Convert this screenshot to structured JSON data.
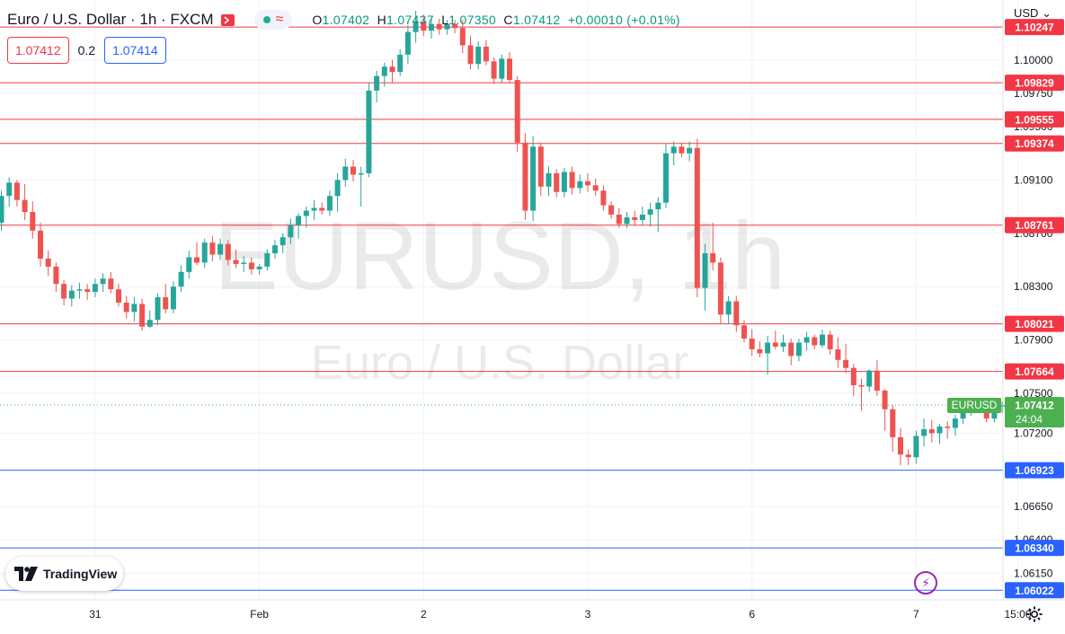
{
  "header": {
    "title": "Euro / U.S. Dollar · 1h · FXCM",
    "open_label": "O",
    "open": "1.07402",
    "high_label": "H",
    "high": "1.07437",
    "low_label": "L",
    "low": "1.07350",
    "close_label": "C",
    "close": "1.07412",
    "change": "+0.00010 (+0.01%)",
    "currency": "USD"
  },
  "quote": {
    "bid": "1.07412",
    "spread": "0.2",
    "ask": "1.07414"
  },
  "watermark": {
    "symbol": "EURUSD, 1h",
    "name": "Euro / U.S. Dollar"
  },
  "branding": {
    "logo_text": "TradingView"
  },
  "colors": {
    "up": "#26a69a",
    "down": "#ef5350",
    "resistance": "#f23645",
    "support": "#2962ff",
    "last_price_bg": "#4caf50",
    "watermark": "rgba(19,23,34,0.09)"
  },
  "icons": {
    "flag": "flag-icon",
    "market_dot": "market-open-dot-icon",
    "wave": "wave-icon",
    "bolt": "lightning-icon",
    "settings": "gear-icon",
    "currency_dropdown": "chevron-down-icon"
  },
  "chart_data": {
    "type": "candlestick",
    "symbol": "EURUSD",
    "timeframe": "1h",
    "ylim": [
      1.0595,
      1.1045
    ],
    "y_ticks": [
      "1.10000",
      "1.09750",
      "1.09500",
      "1.09100",
      "1.08700",
      "1.08300",
      "1.07900",
      "1.07500",
      "1.07200",
      "1.06650",
      "1.06400",
      "1.06150"
    ],
    "x_ticks": [
      {
        "label": "31",
        "index": 12
      },
      {
        "label": "Feb",
        "index": 33
      },
      {
        "label": "2",
        "index": 54
      },
      {
        "label": "3",
        "index": 75
      },
      {
        "label": "6",
        "index": 96
      },
      {
        "label": "7",
        "index": 117
      },
      {
        "label": "15:00",
        "index": 130
      }
    ],
    "resistance_levels": [
      "1.10247",
      "1.09829",
      "1.09555",
      "1.09374",
      "1.08761",
      "1.08021",
      "1.07664"
    ],
    "support_levels": [
      "1.06923",
      "1.06340",
      "1.06022"
    ],
    "last_price": {
      "label": "EURUSD",
      "value": "1.07412",
      "countdown": "24:04"
    },
    "candles": [
      [
        1.0878,
        1.0902,
        1.0872,
        1.0898
      ],
      [
        1.0898,
        1.0912,
        1.089,
        1.0908
      ],
      [
        1.0908,
        1.091,
        1.089,
        1.0895
      ],
      [
        1.0895,
        1.0907,
        1.088,
        1.0886
      ],
      [
        1.0886,
        1.0894,
        1.0866,
        1.0872
      ],
      [
        1.0872,
        1.0878,
        1.0845,
        1.0851
      ],
      [
        1.0851,
        1.0857,
        1.0838,
        1.0845
      ],
      [
        1.0845,
        1.0848,
        1.0826,
        1.0832
      ],
      [
        1.0832,
        1.0835,
        1.0816,
        1.0821
      ],
      [
        1.0821,
        1.0831,
        1.0815,
        1.0827
      ],
      [
        1.0827,
        1.0833,
        1.0821,
        1.0828
      ],
      [
        1.0828,
        1.0832,
        1.082,
        1.0826
      ],
      [
        1.0826,
        1.0836,
        1.0822,
        1.0832
      ],
      [
        1.0832,
        1.084,
        1.0826,
        1.0836
      ],
      [
        1.0836,
        1.0841,
        1.0825,
        1.0828
      ],
      [
        1.0828,
        1.0832,
        1.0815,
        1.0818
      ],
      [
        1.0818,
        1.0823,
        1.0806,
        1.0811
      ],
      [
        1.0811,
        1.0822,
        1.0804,
        1.0817
      ],
      [
        1.0817,
        1.0821,
        1.0797,
        1.08
      ],
      [
        1.08,
        1.0812,
        1.0799,
        1.0805
      ],
      [
        1.0805,
        1.0825,
        1.0801,
        1.0822
      ],
      [
        1.0822,
        1.0832,
        1.081,
        1.0813
      ],
      [
        1.0813,
        1.0834,
        1.081,
        1.083
      ],
      [
        1.083,
        1.0846,
        1.0826,
        1.0841
      ],
      [
        1.0841,
        1.0857,
        1.0836,
        1.0852
      ],
      [
        1.0852,
        1.0863,
        1.0846,
        1.0848
      ],
      [
        1.0848,
        1.0866,
        1.0844,
        1.0863
      ],
      [
        1.0863,
        1.0868,
        1.0849,
        1.0854
      ],
      [
        1.0854,
        1.0866,
        1.085,
        1.0862
      ],
      [
        1.0862,
        1.0865,
        1.0846,
        1.085
      ],
      [
        1.085,
        1.0858,
        1.0844,
        1.0847
      ],
      [
        1.0847,
        1.0853,
        1.0841,
        1.0848
      ],
      [
        1.0848,
        1.0852,
        1.0839,
        1.0843
      ],
      [
        1.0843,
        1.0847,
        1.0839,
        1.0845
      ],
      [
        1.0845,
        1.0858,
        1.0842,
        1.0855
      ],
      [
        1.0855,
        1.0865,
        1.0851,
        1.0861
      ],
      [
        1.0861,
        1.087,
        1.0855,
        1.0867
      ],
      [
        1.0867,
        1.0881,
        1.0862,
        1.0876
      ],
      [
        1.0876,
        1.0885,
        1.0866,
        1.0883
      ],
      [
        1.0883,
        1.089,
        1.0874,
        1.0887
      ],
      [
        1.0887,
        1.0895,
        1.088,
        1.0889
      ],
      [
        1.0889,
        1.0893,
        1.0884,
        1.0887
      ],
      [
        1.0887,
        1.0902,
        1.0883,
        1.0898
      ],
      [
        1.0898,
        1.0915,
        1.0886,
        1.091
      ],
      [
        1.091,
        1.0926,
        1.0905,
        1.092
      ],
      [
        1.092,
        1.0925,
        1.0909,
        1.0914
      ],
      [
        1.0914,
        1.092,
        1.089,
        1.0915
      ],
      [
        1.0915,
        1.0983,
        1.0912,
        1.0977
      ],
      [
        1.0977,
        1.0992,
        1.0968,
        1.0988
      ],
      [
        1.0988,
        1.0998,
        1.098,
        1.0995
      ],
      [
        1.0995,
        1.1,
        1.0983,
        1.0991
      ],
      [
        1.0991,
        1.1008,
        1.0988,
        1.1004
      ],
      [
        1.1004,
        1.1026,
        1.0997,
        1.1021
      ],
      [
        1.1021,
        1.1037,
        1.1013,
        1.1029
      ],
      [
        1.1029,
        1.1034,
        1.1018,
        1.1022
      ],
      [
        1.1022,
        1.1032,
        1.1016,
        1.1027
      ],
      [
        1.1027,
        1.1031,
        1.1019,
        1.1023
      ],
      [
        1.1023,
        1.103,
        1.1019,
        1.1027
      ],
      [
        1.1027,
        1.103,
        1.102,
        1.1024
      ],
      [
        1.1024,
        1.103,
        1.1005,
        1.1011
      ],
      [
        1.1011,
        1.1018,
        1.0993,
        1.0997
      ],
      [
        1.0997,
        1.1014,
        1.0993,
        1.101
      ],
      [
        1.101,
        1.1015,
        1.0996,
        1.0999
      ],
      [
        1.0999,
        1.1002,
        1.0982,
        1.0986
      ],
      [
        1.0986,
        1.1004,
        1.0983,
        1.1001
      ],
      [
        1.1001,
        1.1006,
        1.0983,
        1.0985
      ],
      [
        1.0985,
        1.0988,
        1.0931,
        1.0938
      ],
      [
        1.0938,
        1.0945,
        1.088,
        1.0887
      ],
      [
        1.0887,
        1.0943,
        1.0879,
        1.0935
      ],
      [
        1.0935,
        1.0938,
        1.0898,
        1.0905
      ],
      [
        1.0905,
        1.092,
        1.0898,
        1.0915
      ],
      [
        1.0915,
        1.0918,
        1.0897,
        1.0901
      ],
      [
        1.0901,
        1.0919,
        1.0897,
        1.0916
      ],
      [
        1.0916,
        1.092,
        1.0899,
        1.0904
      ],
      [
        1.0904,
        1.0914,
        1.09,
        1.0909
      ],
      [
        1.0909,
        1.0915,
        1.0901,
        1.0906
      ],
      [
        1.0906,
        1.0911,
        1.0898,
        1.0902
      ],
      [
        1.0902,
        1.0906,
        1.0887,
        1.0891
      ],
      [
        1.0891,
        1.0894,
        1.0881,
        1.0884
      ],
      [
        1.0884,
        1.0889,
        1.0874,
        1.0877
      ],
      [
        1.0877,
        1.0886,
        1.0874,
        1.0882
      ],
      [
        1.0882,
        1.0887,
        1.0876,
        1.088
      ],
      [
        1.088,
        1.089,
        1.0876,
        1.0884
      ],
      [
        1.0884,
        1.0893,
        1.0875,
        1.0888
      ],
      [
        1.0888,
        1.0897,
        1.0871,
        1.0893
      ],
      [
        1.0893,
        1.0937,
        1.0889,
        1.093
      ],
      [
        1.093,
        1.0939,
        1.0921,
        1.0935
      ],
      [
        1.0935,
        1.0938,
        1.0927,
        1.093
      ],
      [
        1.093,
        1.0939,
        1.0924,
        1.0934
      ],
      [
        1.0934,
        1.0941,
        1.0822,
        1.0829
      ],
      [
        1.0829,
        1.0862,
        1.0812,
        1.0855
      ],
      [
        1.0855,
        1.0878,
        1.0842,
        1.0848
      ],
      [
        1.0848,
        1.0852,
        1.0802,
        1.0809
      ],
      [
        1.0809,
        1.0823,
        1.0802,
        1.0819
      ],
      [
        1.0819,
        1.0823,
        1.0796,
        1.0801
      ],
      [
        1.0801,
        1.0805,
        1.0788,
        1.0791
      ],
      [
        1.0791,
        1.0798,
        1.0778,
        1.0783
      ],
      [
        1.0783,
        1.0789,
        1.0777,
        1.078
      ],
      [
        1.078,
        1.0793,
        1.0764,
        1.0788
      ],
      [
        1.0788,
        1.0797,
        1.0783,
        1.0785
      ],
      [
        1.0785,
        1.0794,
        1.0781,
        1.0788
      ],
      [
        1.0788,
        1.0791,
        1.0771,
        1.0778
      ],
      [
        1.0778,
        1.0791,
        1.0774,
        1.0788
      ],
      [
        1.0788,
        1.0796,
        1.0782,
        1.0792
      ],
      [
        1.0792,
        1.0794,
        1.0783,
        1.0786
      ],
      [
        1.0786,
        1.0798,
        1.0784,
        1.0794
      ],
      [
        1.0794,
        1.0797,
        1.0779,
        1.0783
      ],
      [
        1.0783,
        1.0792,
        1.0769,
        1.0775
      ],
      [
        1.0775,
        1.0787,
        1.0765,
        1.0769
      ],
      [
        1.0769,
        1.0772,
        1.0748,
        1.0756
      ],
      [
        1.0756,
        1.0761,
        1.0737,
        1.0755
      ],
      [
        1.0755,
        1.0768,
        1.0751,
        1.0767
      ],
      [
        1.0767,
        1.0775,
        1.0748,
        1.0752
      ],
      [
        1.0752,
        1.0753,
        1.0722,
        1.0738
      ],
      [
        1.0738,
        1.0741,
        1.0706,
        1.0717
      ],
      [
        1.0717,
        1.0724,
        1.0696,
        1.0704
      ],
      [
        1.0704,
        1.0708,
        1.0696,
        1.0702
      ],
      [
        1.0702,
        1.0722,
        1.0697,
        1.0718
      ],
      [
        1.0718,
        1.0731,
        1.071,
        1.0723
      ],
      [
        1.0723,
        1.073,
        1.0713,
        1.072
      ],
      [
        1.072,
        1.0727,
        1.0712,
        1.0725
      ],
      [
        1.0725,
        1.0729,
        1.0716,
        1.0724
      ],
      [
        1.0724,
        1.0734,
        1.0718,
        1.0731
      ],
      [
        1.0731,
        1.0742,
        1.0727,
        1.0739
      ],
      [
        1.0739,
        1.0745,
        1.0733,
        1.0741
      ],
      [
        1.0741,
        1.0745,
        1.0736,
        1.0738
      ],
      [
        1.0738,
        1.0742,
        1.0728,
        1.0731
      ],
      [
        1.0731,
        1.0745,
        1.0728,
        1.074
      ],
      [
        1.074,
        1.07437,
        1.0735,
        1.07412
      ]
    ]
  }
}
